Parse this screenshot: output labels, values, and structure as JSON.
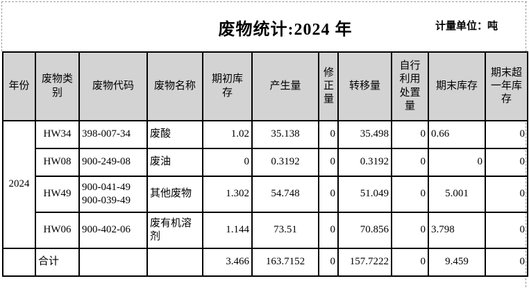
{
  "page": {
    "title": "废物统计:2024 年",
    "unit_label": "计量单位：吨"
  },
  "colors": {
    "header_bg": "#d3d3d3",
    "border": "#000000",
    "dash_guide": "#9a9a9a",
    "text": "#000000"
  },
  "table": {
    "columns": [
      "年份",
      "废物类别",
      "废物代码",
      "废物名称",
      "期初库存",
      "产生量",
      "修正量",
      "转移量",
      "自行利用处置量",
      "期末库存",
      "期末超一年库存"
    ],
    "rows": [
      {
        "year": {
          "t": "2024",
          "rowspan": 4
        },
        "tall": false,
        "cells": [
          {
            "t": "HW34",
            "a": "center"
          },
          {
            "t": "398-007-34",
            "a": "left"
          },
          {
            "t": "废酸",
            "a": "left"
          },
          {
            "t": "1.02",
            "a": "right"
          },
          {
            "t": "35.138",
            "a": "center"
          },
          {
            "t": "0",
            "a": "right"
          },
          {
            "t": "35.498",
            "a": "rightpad"
          },
          {
            "t": "0",
            "a": "right"
          },
          {
            "t": "0.66",
            "a": "left"
          },
          {
            "t": "0",
            "a": "right"
          }
        ]
      },
      {
        "tall": false,
        "cells": [
          {
            "t": "HW08",
            "a": "center"
          },
          {
            "t": "900-249-08",
            "a": "left"
          },
          {
            "t": "废油",
            "a": "left"
          },
          {
            "t": "0",
            "a": "right"
          },
          {
            "t": "0.3192",
            "a": "center"
          },
          {
            "t": "0",
            "a": "right"
          },
          {
            "t": "0.3192",
            "a": "rightpad"
          },
          {
            "t": "0",
            "a": "right"
          },
          {
            "t": "0",
            "a": "right"
          },
          {
            "t": "0",
            "a": "right"
          }
        ]
      },
      {
        "tall": true,
        "cells": [
          {
            "t": "HW49",
            "a": "center"
          },
          {
            "t": "900-041-49\n900-039-49",
            "a": "left"
          },
          {
            "t": "其他废物",
            "a": "left"
          },
          {
            "t": "1.302",
            "a": "right"
          },
          {
            "t": "54.748",
            "a": "center"
          },
          {
            "t": "0",
            "a": "right"
          },
          {
            "t": "51.049",
            "a": "rightpad"
          },
          {
            "t": "0",
            "a": "right"
          },
          {
            "t": "5.001",
            "a": "center"
          },
          {
            "t": "0",
            "a": "right"
          }
        ]
      },
      {
        "tall": true,
        "cells": [
          {
            "t": "HW06",
            "a": "center"
          },
          {
            "t": "900-402-06",
            "a": "left"
          },
          {
            "t": "废有机溶剂",
            "a": "left"
          },
          {
            "t": "1.144",
            "a": "right"
          },
          {
            "t": "73.51",
            "a": "center"
          },
          {
            "t": "0",
            "a": "right"
          },
          {
            "t": "70.856",
            "a": "rightpad"
          },
          {
            "t": "0",
            "a": "right"
          },
          {
            "t": "3.798",
            "a": "left"
          },
          {
            "t": "0",
            "a": "right"
          }
        ]
      },
      {
        "year": {
          "t": "",
          "rowspan": 1
        },
        "tall": false,
        "is_total": true,
        "cells": [
          {
            "t": "合计",
            "a": "topleft"
          },
          {
            "t": "",
            "a": "left"
          },
          {
            "t": "",
            "a": "left"
          },
          {
            "t": "3.466",
            "a": "right"
          },
          {
            "t": "163.7152",
            "a": "center"
          },
          {
            "t": "0",
            "a": "right"
          },
          {
            "t": "157.7222",
            "a": "rightpad"
          },
          {
            "t": "0",
            "a": "right"
          },
          {
            "t": "9.459",
            "a": "center"
          },
          {
            "t": "0",
            "a": "right"
          }
        ]
      }
    ]
  }
}
